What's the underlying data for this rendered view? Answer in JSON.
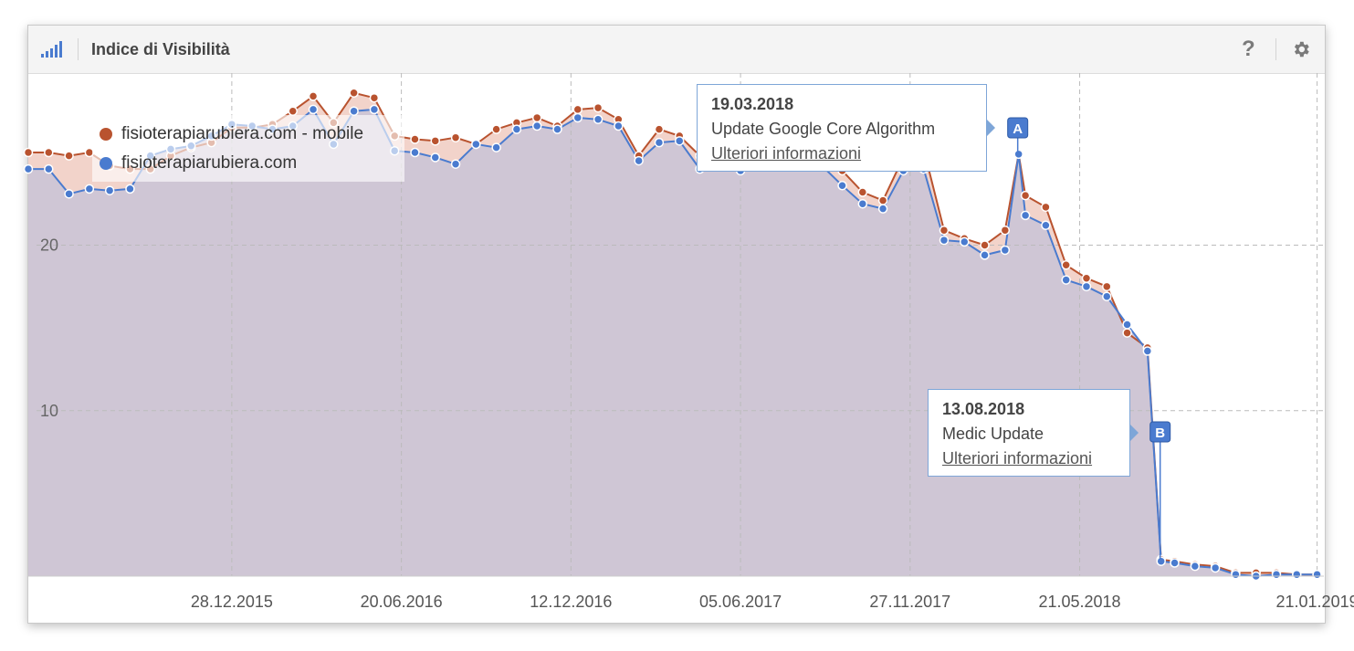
{
  "header": {
    "title": "Indice di Visibilità",
    "help_label": "?"
  },
  "colors": {
    "mobile": "#b9532f",
    "desktop": "#4a7bcf",
    "area": "#cfc6d5",
    "accent": "#4a7bcf"
  },
  "tooltips": [
    {
      "date": "19.03.2018",
      "label": "Update Google Core Algorithm",
      "link": "Ulteriori informazioni"
    },
    {
      "date": "13.08.2018",
      "label": "Medic Update",
      "link": "Ulteriori informazioni"
    }
  ],
  "chart_data": {
    "type": "area",
    "title": "",
    "xlabel": "",
    "ylabel": "",
    "ylim": [
      0,
      30.4
    ],
    "yticks": [
      10,
      20
    ],
    "xlim": [
      "2015-06-01",
      "2019-01-28"
    ],
    "xticks": [
      "28.12.2015",
      "20.06.2016",
      "12.12.2016",
      "05.06.2017",
      "27.11.2017",
      "21.05.2018",
      "21.01.2019"
    ],
    "grid": true,
    "legend_position": "top-left",
    "series": [
      {
        "name": "fisioterapiarubiera.com - mobile",
        "x": [
          "2015-06-01",
          "2015-06-22",
          "2015-07-13",
          "2015-08-03",
          "2015-08-24",
          "2015-09-14",
          "2015-10-05",
          "2015-10-26",
          "2015-11-16",
          "2015-12-07",
          "2015-12-28",
          "2016-01-18",
          "2016-02-08",
          "2016-02-29",
          "2016-03-21",
          "2016-04-11",
          "2016-05-02",
          "2016-05-23",
          "2016-06-13",
          "2016-07-04",
          "2016-07-25",
          "2016-08-15",
          "2016-09-05",
          "2016-09-26",
          "2016-10-17",
          "2016-11-07",
          "2016-11-28",
          "2016-12-19",
          "2017-01-09",
          "2017-01-30",
          "2017-02-20",
          "2017-03-13",
          "2017-04-03",
          "2017-04-24",
          "2017-05-15",
          "2017-06-05",
          "2017-06-26",
          "2017-07-17",
          "2017-08-07",
          "2017-08-28",
          "2017-09-18",
          "2017-10-09",
          "2017-10-30",
          "2017-11-20",
          "2017-12-11",
          "2018-01-01",
          "2018-01-22",
          "2018-02-12",
          "2018-03-05",
          "2018-03-19",
          "2018-03-26",
          "2018-04-16",
          "2018-05-07",
          "2018-05-28",
          "2018-06-18",
          "2018-07-09",
          "2018-07-30",
          "2018-08-13",
          "2018-08-27",
          "2018-09-17",
          "2018-10-08",
          "2018-10-29",
          "2018-11-19",
          "2018-12-10",
          "2018-12-31",
          "2019-01-21"
        ],
        "values": [
          25.6,
          25.6,
          25.4,
          25.6,
          24.8,
          24.6,
          24.6,
          25.4,
          25.9,
          26.2,
          27.1,
          27.1,
          27.3,
          28.1,
          29.0,
          27.4,
          29.2,
          28.9,
          26.6,
          26.4,
          26.3,
          26.5,
          26.1,
          27.0,
          27.4,
          27.7,
          27.2,
          28.2,
          28.3,
          27.6,
          25.4,
          27.0,
          26.6,
          25.4,
          25.3,
          25.8,
          26.1,
          26.1,
          25.8,
          25.1,
          24.5,
          23.2,
          22.7,
          25.3,
          25.8,
          20.9,
          20.4,
          20.0,
          20.9,
          25.5,
          23.0,
          22.3,
          18.8,
          18.0,
          17.5,
          14.7,
          13.8,
          1.0,
          0.9,
          0.7,
          0.6,
          0.2,
          0.2,
          0.2,
          0.1,
          0.1
        ]
      },
      {
        "name": "fisioterapiarubiera.com",
        "x": [
          "2015-06-01",
          "2015-06-22",
          "2015-07-13",
          "2015-08-03",
          "2015-08-24",
          "2015-09-14",
          "2015-10-05",
          "2015-10-26",
          "2015-11-16",
          "2015-12-07",
          "2015-12-28",
          "2016-01-18",
          "2016-02-08",
          "2016-02-29",
          "2016-03-21",
          "2016-04-11",
          "2016-05-02",
          "2016-05-23",
          "2016-06-13",
          "2016-07-04",
          "2016-07-25",
          "2016-08-15",
          "2016-09-05",
          "2016-09-26",
          "2016-10-17",
          "2016-11-07",
          "2016-11-28",
          "2016-12-19",
          "2017-01-09",
          "2017-01-30",
          "2017-02-20",
          "2017-03-13",
          "2017-04-03",
          "2017-04-24",
          "2017-05-15",
          "2017-06-05",
          "2017-06-26",
          "2017-07-17",
          "2017-08-07",
          "2017-08-28",
          "2017-09-18",
          "2017-10-09",
          "2017-10-30",
          "2017-11-20",
          "2017-12-11",
          "2018-01-01",
          "2018-01-22",
          "2018-02-12",
          "2018-03-05",
          "2018-03-19",
          "2018-03-26",
          "2018-04-16",
          "2018-05-07",
          "2018-05-28",
          "2018-06-18",
          "2018-07-09",
          "2018-07-30",
          "2018-08-13",
          "2018-08-27",
          "2018-09-17",
          "2018-10-08",
          "2018-10-29",
          "2018-11-19",
          "2018-12-10",
          "2018-12-31",
          "2019-01-21"
        ],
        "values": [
          24.6,
          24.6,
          23.1,
          23.4,
          23.3,
          23.4,
          25.4,
          25.8,
          26.0,
          26.6,
          27.3,
          27.2,
          27.0,
          27.2,
          28.2,
          26.1,
          28.1,
          28.2,
          25.7,
          25.6,
          25.3,
          24.9,
          26.1,
          25.9,
          27.0,
          27.2,
          27.0,
          27.7,
          27.6,
          27.2,
          25.1,
          26.2,
          26.3,
          24.6,
          25.3,
          24.5,
          26.1,
          25.8,
          25.1,
          24.8,
          23.6,
          22.5,
          22.2,
          24.5,
          24.6,
          20.3,
          20.2,
          19.4,
          19.7,
          25.5,
          21.8,
          21.2,
          17.9,
          17.5,
          16.9,
          15.2,
          13.6,
          0.9,
          0.8,
          0.6,
          0.5,
          0.1,
          0.0,
          0.1,
          0.1,
          0.1
        ]
      }
    ],
    "events": [
      {
        "marker": "A",
        "date": "2018-03-19",
        "label": "Update Google Core Algorithm"
      },
      {
        "marker": "B",
        "date": "2018-08-13",
        "label": "Medic Update"
      }
    ]
  }
}
